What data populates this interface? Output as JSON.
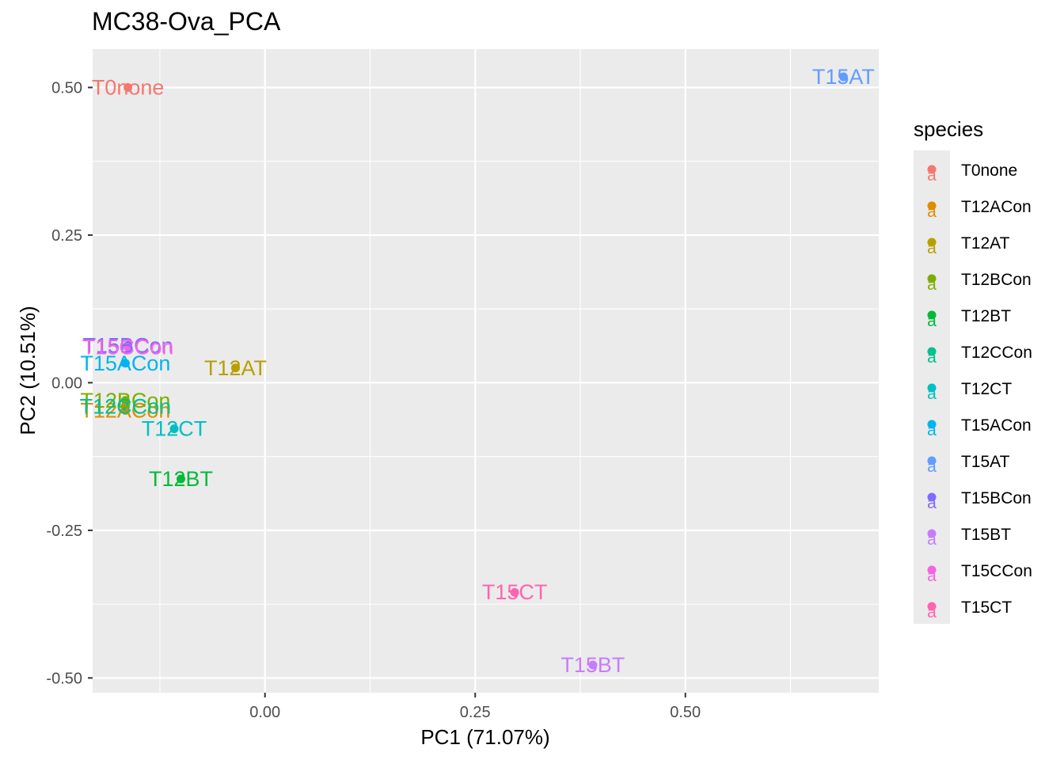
{
  "chart_data": {
    "type": "scatter",
    "title": "MC38-Ova_PCA",
    "xlabel": "PC1 (71.07%)",
    "ylabel": "PC2 (10.51%)",
    "xlim": [
      -0.205,
      0.73
    ],
    "ylim": [
      -0.525,
      0.565
    ],
    "x_ticks": [
      0.0,
      0.25,
      0.5
    ],
    "x_tick_labels": [
      "0.00",
      "0.25",
      "0.50"
    ],
    "y_ticks": [
      0.5,
      0.25,
      0.0,
      -0.25,
      -0.5
    ],
    "y_tick_labels": [
      "0.50",
      "0.25",
      "0.00",
      "-0.25",
      "-0.50"
    ],
    "grid": true,
    "legend": {
      "title": "species",
      "placement": "right"
    },
    "series": [
      {
        "name": "T0none",
        "x": -0.163,
        "y": 0.5,
        "color": "#F8766D"
      },
      {
        "name": "T12ACon",
        "x": -0.166,
        "y": -0.047,
        "color": "#DE8C00"
      },
      {
        "name": "T12AT",
        "x": -0.035,
        "y": 0.025,
        "color": "#B79F00"
      },
      {
        "name": "T12BCon",
        "x": -0.166,
        "y": -0.03,
        "color": "#7CAE00"
      },
      {
        "name": "T12BT",
        "x": -0.1,
        "y": -0.163,
        "color": "#00BA38"
      },
      {
        "name": "T12CCon",
        "x": -0.166,
        "y": -0.04,
        "color": "#00C08B"
      },
      {
        "name": "T12CT",
        "x": -0.108,
        "y": -0.078,
        "color": "#00BFC4"
      },
      {
        "name": "T15ACon",
        "x": -0.166,
        "y": 0.033,
        "color": "#00B4F0"
      },
      {
        "name": "T15AT",
        "x": 0.688,
        "y": 0.518,
        "color": "#619CFF"
      },
      {
        "name": "T15BCon",
        "x": -0.163,
        "y": 0.063,
        "color": "#7C6CFF"
      },
      {
        "name": "T15BT",
        "x": 0.39,
        "y": -0.478,
        "color": "#C77CFF"
      },
      {
        "name": "T15CCon",
        "x": -0.163,
        "y": 0.06,
        "color": "#F564E3"
      },
      {
        "name": "T15CT",
        "x": 0.297,
        "y": -0.355,
        "color": "#FF64B0"
      }
    ]
  }
}
